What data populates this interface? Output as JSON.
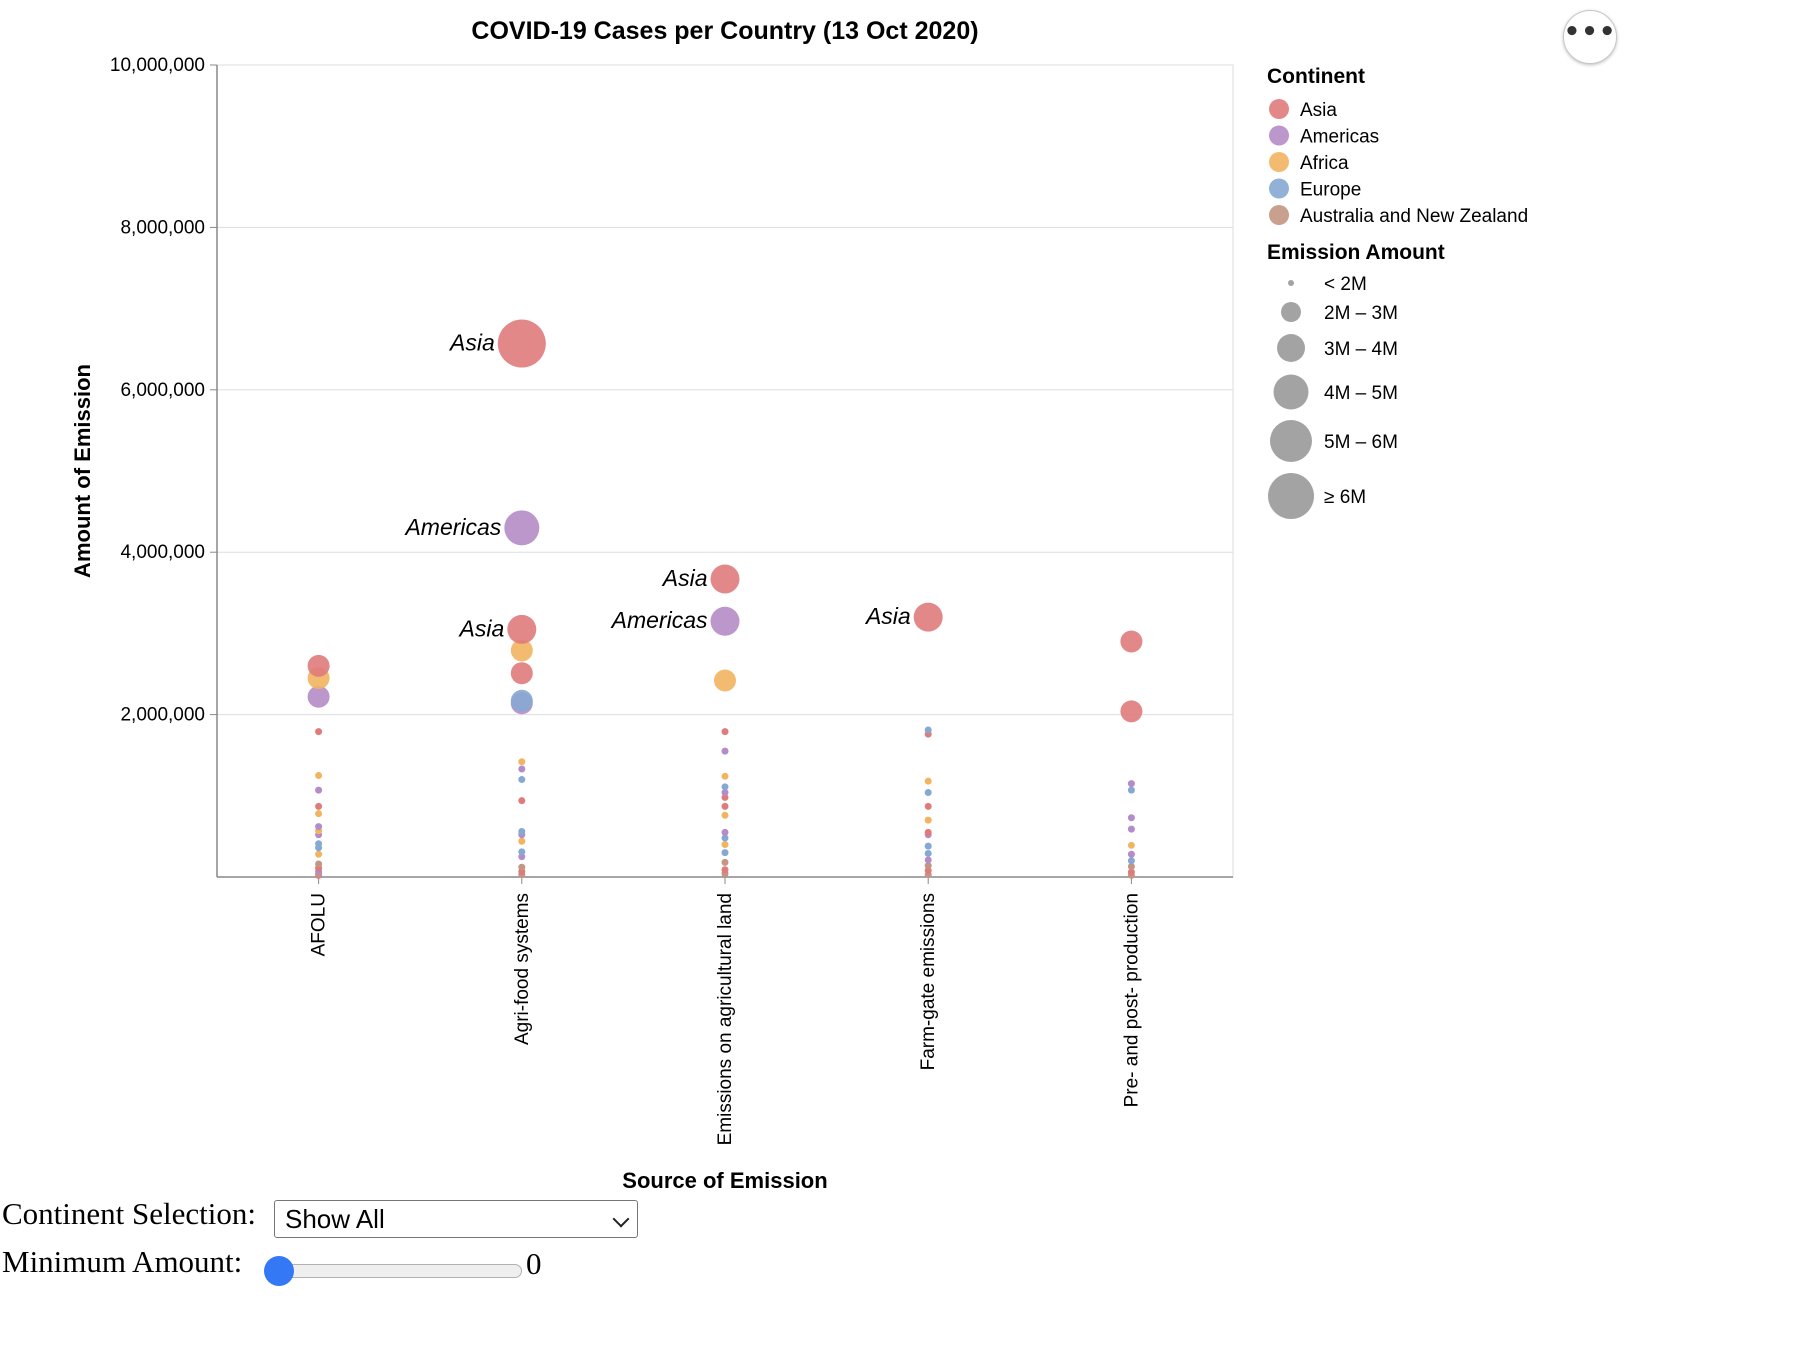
{
  "actions_button": {
    "label": "•••",
    "icon": "more-horizontal-icon"
  },
  "controls": {
    "continent_label": "Continent Selection:",
    "continent_value": "Show All",
    "minimum_label": "Minimum Amount:",
    "minimum_value": "0",
    "minimum_fraction": 0
  },
  "chart_data": {
    "type": "scatter",
    "title": "COVID-19 Cases per Country (13 Oct 2020)",
    "xlabel": "Source of Emission",
    "ylabel": "Amount of Emission",
    "categories": [
      "AFOLU",
      "Agri-food systems",
      "Emissions on agricultural land",
      "Farm-gate emissions",
      "Pre- and post- production"
    ],
    "ylim": [
      0,
      10000000
    ],
    "yticks": [
      2000000,
      4000000,
      6000000,
      8000000,
      10000000
    ],
    "ytick_labels": [
      "2,000,000",
      "4,000,000",
      "6,000,000",
      "8,000,000",
      "10,000,000"
    ],
    "grid": true,
    "legend_placement": "top-right",
    "color_legend": {
      "title": "Continent",
      "entries": [
        {
          "name": "Asia",
          "color": "#e07b7b"
        },
        {
          "name": "Americas",
          "color": "#b48cc7"
        },
        {
          "name": "Africa",
          "color": "#f2b45f"
        },
        {
          "name": "Europe",
          "color": "#86a9d3"
        },
        {
          "name": "Australia and New Zealand",
          "color": "#c39582"
        }
      ]
    },
    "size_legend": {
      "title": "Emission Amount",
      "entries": [
        {
          "label": "< 2M",
          "value": 1000000
        },
        {
          "label": "2M – 3M",
          "value": 2500000
        },
        {
          "label": "3M – 4M",
          "value": 3500000
        },
        {
          "label": "4M – 5M",
          "value": 4500000
        },
        {
          "label": "5M – 6M",
          "value": 5500000
        },
        {
          "label": "≥ 6M",
          "value": 6500000
        }
      ]
    },
    "points": [
      {
        "category": "AFOLU",
        "continent": "Asia",
        "value": 2600000
      },
      {
        "category": "AFOLU",
        "continent": "Africa",
        "value": 2450000
      },
      {
        "category": "AFOLU",
        "continent": "Americas",
        "value": 2220000
      },
      {
        "category": "AFOLU",
        "continent": "Asia",
        "value": 1790000
      },
      {
        "category": "AFOLU",
        "continent": "Africa",
        "value": 1250000
      },
      {
        "category": "AFOLU",
        "continent": "Americas",
        "value": 1070000
      },
      {
        "category": "AFOLU",
        "continent": "Asia",
        "value": 870000
      },
      {
        "category": "AFOLU",
        "continent": "Africa",
        "value": 780000
      },
      {
        "category": "AFOLU",
        "continent": "Americas",
        "value": 620000
      },
      {
        "category": "AFOLU",
        "continent": "Africa",
        "value": 570000
      },
      {
        "category": "AFOLU",
        "continent": "Americas",
        "value": 520000
      },
      {
        "category": "AFOLU",
        "continent": "Europe",
        "value": 410000
      },
      {
        "category": "AFOLU",
        "continent": "Europe",
        "value": 360000
      },
      {
        "category": "AFOLU",
        "continent": "Africa",
        "value": 280000
      },
      {
        "category": "AFOLU",
        "continent": "Australia and New Zealand",
        "value": 160000
      },
      {
        "category": "AFOLU",
        "continent": "Asia",
        "value": 110000
      },
      {
        "category": "AFOLU",
        "continent": "Americas",
        "value": 70000
      },
      {
        "category": "AFOLU",
        "continent": "Australia and New Zealand",
        "value": 40000
      },
      {
        "category": "AFOLU",
        "continent": "Asia",
        "value": 20000
      },
      {
        "category": "Agri-food systems",
        "continent": "Asia",
        "value": 6570000,
        "label": "Asia"
      },
      {
        "category": "Agri-food systems",
        "continent": "Americas",
        "value": 4300000,
        "label": "Americas"
      },
      {
        "category": "Agri-food systems",
        "continent": "Asia",
        "value": 3050000,
        "label": "Asia"
      },
      {
        "category": "Agri-food systems",
        "continent": "Africa",
        "value": 2790000
      },
      {
        "category": "Agri-food systems",
        "continent": "Asia",
        "value": 2510000
      },
      {
        "category": "Agri-food systems",
        "continent": "Europe",
        "value": 2170000
      },
      {
        "category": "Agri-food systems",
        "continent": "Americas",
        "value": 2140000
      },
      {
        "category": "Agri-food systems",
        "continent": "Africa",
        "value": 1420000
      },
      {
        "category": "Agri-food systems",
        "continent": "Americas",
        "value": 1330000
      },
      {
        "category": "Agri-food systems",
        "continent": "Europe",
        "value": 1200000
      },
      {
        "category": "Agri-food systems",
        "continent": "Asia",
        "value": 940000
      },
      {
        "category": "Agri-food systems",
        "continent": "Europe",
        "value": 560000
      },
      {
        "category": "Agri-food systems",
        "continent": "Americas",
        "value": 520000
      },
      {
        "category": "Agri-food systems",
        "continent": "Africa",
        "value": 440000
      },
      {
        "category": "Agri-food systems",
        "continent": "Europe",
        "value": 310000
      },
      {
        "category": "Agri-food systems",
        "continent": "Americas",
        "value": 250000
      },
      {
        "category": "Agri-food systems",
        "continent": "Australia and New Zealand",
        "value": 120000
      },
      {
        "category": "Agri-food systems",
        "continent": "Asia",
        "value": 70000
      },
      {
        "category": "Agri-food systems",
        "continent": "Australia and New Zealand",
        "value": 30000
      },
      {
        "category": "Emissions on agricultural land",
        "continent": "Asia",
        "value": 3670000,
        "label": "Asia"
      },
      {
        "category": "Emissions on agricultural land",
        "continent": "Americas",
        "value": 3150000,
        "label": "Americas"
      },
      {
        "category": "Emissions on agricultural land",
        "continent": "Africa",
        "value": 2420000
      },
      {
        "category": "Emissions on agricultural land",
        "continent": "Asia",
        "value": 1790000
      },
      {
        "category": "Emissions on agricultural land",
        "continent": "Americas",
        "value": 1550000
      },
      {
        "category": "Emissions on agricultural land",
        "continent": "Africa",
        "value": 1240000
      },
      {
        "category": "Emissions on agricultural land",
        "continent": "Europe",
        "value": 1110000
      },
      {
        "category": "Emissions on agricultural land",
        "continent": "Americas",
        "value": 1040000
      },
      {
        "category": "Emissions on agricultural land",
        "continent": "Asia",
        "value": 980000
      },
      {
        "category": "Emissions on agricultural land",
        "continent": "Asia",
        "value": 870000
      },
      {
        "category": "Emissions on agricultural land",
        "continent": "Africa",
        "value": 760000
      },
      {
        "category": "Emissions on agricultural land",
        "continent": "Americas",
        "value": 550000
      },
      {
        "category": "Emissions on agricultural land",
        "continent": "Europe",
        "value": 480000
      },
      {
        "category": "Emissions on agricultural land",
        "continent": "Africa",
        "value": 400000
      },
      {
        "category": "Emissions on agricultural land",
        "continent": "Europe",
        "value": 300000
      },
      {
        "category": "Emissions on agricultural land",
        "continent": "Australia and New Zealand",
        "value": 180000
      },
      {
        "category": "Emissions on agricultural land",
        "continent": "Asia",
        "value": 90000
      },
      {
        "category": "Emissions on agricultural land",
        "continent": "Australia and New Zealand",
        "value": 40000
      },
      {
        "category": "Farm-gate emissions",
        "continent": "Asia",
        "value": 3200000,
        "label": "Asia"
      },
      {
        "category": "Farm-gate emissions",
        "continent": "Europe",
        "value": 1810000
      },
      {
        "category": "Farm-gate emissions",
        "continent": "Asia",
        "value": 1760000
      },
      {
        "category": "Farm-gate emissions",
        "continent": "Africa",
        "value": 1180000
      },
      {
        "category": "Farm-gate emissions",
        "continent": "Europe",
        "value": 1040000
      },
      {
        "category": "Farm-gate emissions",
        "continent": "Asia",
        "value": 870000
      },
      {
        "category": "Farm-gate emissions",
        "continent": "Africa",
        "value": 700000
      },
      {
        "category": "Farm-gate emissions",
        "continent": "Asia",
        "value": 550000
      },
      {
        "category": "Farm-gate emissions",
        "continent": "Americas",
        "value": 520000
      },
      {
        "category": "Farm-gate emissions",
        "continent": "Europe",
        "value": 380000
      },
      {
        "category": "Farm-gate emissions",
        "continent": "Europe",
        "value": 290000
      },
      {
        "category": "Farm-gate emissions",
        "continent": "Americas",
        "value": 210000
      },
      {
        "category": "Farm-gate emissions",
        "continent": "Australia and New Zealand",
        "value": 140000
      },
      {
        "category": "Farm-gate emissions",
        "continent": "Asia",
        "value": 80000
      },
      {
        "category": "Farm-gate emissions",
        "continent": "Australia and New Zealand",
        "value": 30000
      },
      {
        "category": "Pre- and post- production",
        "continent": "Asia",
        "value": 2900000
      },
      {
        "category": "Pre- and post- production",
        "continent": "Asia",
        "value": 2040000
      },
      {
        "category": "Pre- and post- production",
        "continent": "Americas",
        "value": 1150000
      },
      {
        "category": "Pre- and post- production",
        "continent": "Europe",
        "value": 1070000
      },
      {
        "category": "Pre- and post- production",
        "continent": "Americas",
        "value": 730000
      },
      {
        "category": "Pre- and post- production",
        "continent": "Americas",
        "value": 590000
      },
      {
        "category": "Pre- and post- production",
        "continent": "Africa",
        "value": 390000
      },
      {
        "category": "Pre- and post- production",
        "continent": "Americas",
        "value": 280000
      },
      {
        "category": "Pre- and post- production",
        "continent": "Europe",
        "value": 200000
      },
      {
        "category": "Pre- and post- production",
        "continent": "Australia and New Zealand",
        "value": 130000
      },
      {
        "category": "Pre- and post- production",
        "continent": "Asia",
        "value": 60000
      },
      {
        "category": "Pre- and post- production",
        "continent": "Australia and New Zealand",
        "value": 20000
      }
    ]
  }
}
